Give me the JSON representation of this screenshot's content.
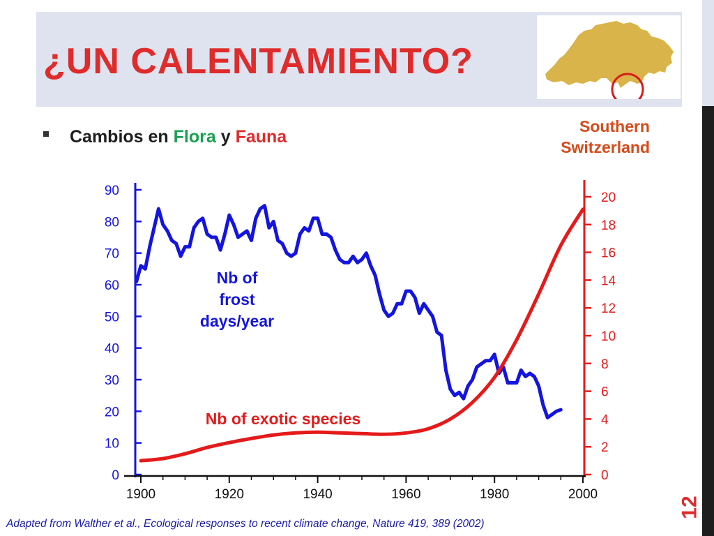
{
  "title": "¿UN CALENTAMIENTO?",
  "bullet": {
    "prefix": "Cambios en ",
    "flora": "Flora",
    "middle": " y ",
    "fauna": "Fauna"
  },
  "map": {
    "label_line1": "Southern",
    "label_line2": "Switzerland",
    "map_color": "#d9b44a",
    "circle_color": "#d91c1c"
  },
  "page_number": "12",
  "citation": "Adapted from Walther et al., Ecological responses to recent climate change, Nature 419, 389 (2002)",
  "colors": {
    "title": "#e02b2b",
    "blue": "#1414e0",
    "red": "#e51a1a",
    "flora": "#1aa052"
  },
  "chart_data": {
    "type": "line",
    "title": "",
    "x_ticks": [
      1900,
      1920,
      1940,
      1960,
      1980,
      2000
    ],
    "xlim": [
      1900,
      2000
    ],
    "left_axis": {
      "ylim": [
        0,
        90
      ],
      "ticks": [
        0,
        10,
        20,
        30,
        40,
        50,
        60,
        70,
        80,
        90
      ],
      "color": "#1414e0"
    },
    "right_axis": {
      "ylim": [
        0,
        20.3
      ],
      "ticks": [
        0,
        2,
        4,
        6,
        8,
        10,
        12,
        14,
        16,
        18,
        20
      ],
      "color": "#e51a1a"
    },
    "series": [
      {
        "name": "Nb of frost days/year",
        "label_lines": [
          "Nb of",
          "frost",
          "days/year"
        ],
        "axis": "left",
        "color": "#1414e0",
        "x": [
          1899,
          1900,
          1901,
          1902,
          1903,
          1904,
          1905,
          1906,
          1907,
          1908,
          1909,
          1910,
          1911,
          1912,
          1913,
          1914,
          1915,
          1916,
          1917,
          1918,
          1919,
          1920,
          1921,
          1922,
          1923,
          1924,
          1925,
          1926,
          1927,
          1928,
          1929,
          1930,
          1931,
          1932,
          1933,
          1934,
          1935,
          1936,
          1937,
          1938,
          1939,
          1940,
          1941,
          1942,
          1943,
          1944,
          1945,
          1946,
          1947,
          1948,
          1949,
          1950,
          1951,
          1952,
          1953,
          1954,
          1955,
          1956,
          1957,
          1958,
          1959,
          1960,
          1961,
          1962,
          1963,
          1964,
          1965,
          1966,
          1967,
          1968,
          1969,
          1970,
          1971,
          1972,
          1973,
          1974,
          1975,
          1976,
          1977,
          1978,
          1979,
          1980,
          1981,
          1982,
          1983,
          1984,
          1985,
          1986,
          1987,
          1988,
          1989,
          1990,
          1991,
          1992,
          1993,
          1994,
          1995
        ],
        "values": [
          61,
          66,
          65,
          72,
          78,
          84,
          79,
          77,
          74,
          73,
          69,
          72,
          72,
          78,
          80,
          81,
          76,
          75,
          75,
          71,
          76,
          82,
          79,
          75,
          76,
          77,
          74,
          81,
          84,
          85,
          78,
          80,
          74,
          73,
          70,
          69,
          70,
          76,
          78,
          77,
          81,
          81,
          76,
          76,
          75,
          71,
          68,
          67,
          67,
          69,
          67,
          68,
          70,
          66,
          63,
          57,
          52,
          50,
          51,
          54,
          54,
          58,
          58,
          56,
          51,
          54,
          52,
          50,
          45,
          44,
          33,
          27,
          25,
          26,
          24,
          28,
          30,
          34,
          35,
          36,
          36,
          38,
          32,
          34,
          29,
          29,
          29,
          33,
          31,
          32,
          31,
          28,
          22,
          18,
          19,
          20,
          20.5
        ]
      },
      {
        "name": "Nb of exotic species",
        "axis": "right",
        "color": "#e51a1a",
        "x": [
          1900,
          1905,
          1910,
          1915,
          1920,
          1925,
          1930,
          1935,
          1940,
          1945,
          1950,
          1955,
          1960,
          1965,
          1970,
          1975,
          1980,
          1985,
          1990,
          1995,
          2000
        ],
        "values": [
          1.0,
          1.15,
          1.5,
          1.95,
          2.3,
          2.6,
          2.85,
          3.0,
          3.05,
          3.0,
          2.95,
          2.9,
          3.0,
          3.3,
          4.0,
          5.2,
          7.0,
          9.7,
          13.0,
          16.5,
          19.1
        ]
      }
    ]
  }
}
